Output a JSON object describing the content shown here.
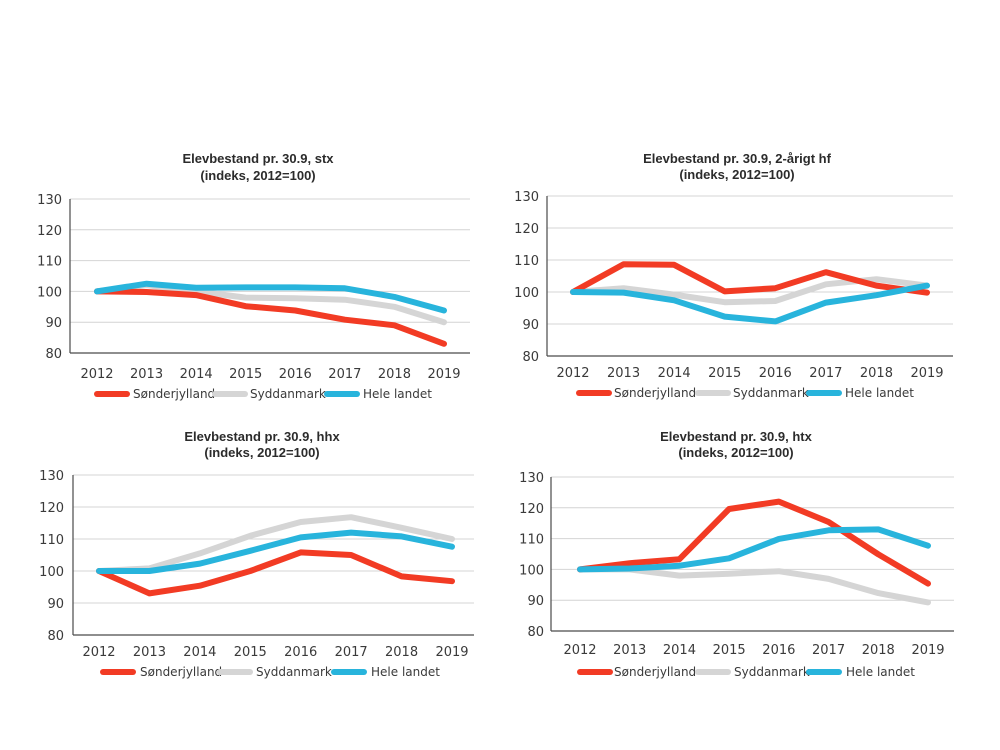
{
  "colors": {
    "Sønderjylland": "#f23b24",
    "Syddanmark": "#d5d5d5",
    "Hele landet": "#28b4dc"
  },
  "chart_data": [
    {
      "type": "line",
      "title": "Elevbestand pr. 30.9, stx",
      "subtitle": "(indeks, 2012=100)",
      "categories": [
        "2012",
        "2013",
        "2014",
        "2015",
        "2016",
        "2017",
        "2018",
        "2019"
      ],
      "ylim": [
        80,
        130
      ],
      "yticks": [
        "130",
        "120",
        "110",
        "100",
        "90",
        "80"
      ],
      "grid": true,
      "legend": "bottom",
      "series": [
        {
          "name": "Syddanmark",
          "values": [
            100,
            102,
            100,
            98,
            97.8,
            97.3,
            95,
            90
          ]
        },
        {
          "name": "Sønderjylland",
          "values": [
            100,
            99.8,
            98.8,
            95.2,
            93.8,
            90.8,
            89,
            83
          ]
        },
        {
          "name": "Hele landet",
          "values": [
            100,
            102.5,
            101.2,
            101.3,
            101.3,
            101,
            98.2,
            93.8
          ]
        }
      ]
    },
    {
      "type": "line",
      "title": "Elevbestand pr. 30.9, 2-årigt hf",
      "subtitle": "(indeks, 2012=100)",
      "categories": [
        "2012",
        "2013",
        "2014",
        "2015",
        "2016",
        "2017",
        "2018",
        "2019"
      ],
      "ylim": [
        80,
        130
      ],
      "yticks": [
        "130",
        "120",
        "110",
        "100",
        "90",
        "80"
      ],
      "grid": true,
      "legend": "bottom",
      "series": [
        {
          "name": "Syddanmark",
          "values": [
            100,
            101.2,
            99.2,
            96.8,
            97.2,
            102.4,
            104,
            102
          ]
        },
        {
          "name": "Sønderjylland",
          "values": [
            100,
            108.7,
            108.5,
            100.2,
            101.2,
            106.2,
            102,
            99.8
          ]
        },
        {
          "name": "Hele landet",
          "values": [
            100,
            99.8,
            97.4,
            92.3,
            90.8,
            96.7,
            99,
            102
          ]
        }
      ]
    },
    {
      "type": "line",
      "title": "Elevbestand pr. 30.9, hhx",
      "subtitle": "(indeks, 2012=100)",
      "categories": [
        "2012",
        "2013",
        "2014",
        "2015",
        "2016",
        "2017",
        "2018",
        "2019"
      ],
      "ylim": [
        80,
        130
      ],
      "yticks": [
        "130",
        "120",
        "110",
        "100",
        "90",
        "80"
      ],
      "grid": true,
      "legend": "bottom",
      "series": [
        {
          "name": "Syddanmark",
          "values": [
            100,
            100.8,
            105.5,
            111,
            115.3,
            116.8,
            113.5,
            110
          ]
        },
        {
          "name": "Sønderjylland",
          "values": [
            100,
            93,
            95.4,
            100,
            105.8,
            105,
            98.3,
            96.8
          ]
        },
        {
          "name": "Hele landet",
          "values": [
            100,
            100,
            102.3,
            106.3,
            110.5,
            112,
            110.8,
            107.6
          ]
        }
      ]
    },
    {
      "type": "line",
      "title": "Elevbestand pr. 30.9, htx",
      "subtitle": "(indeks, 2012=100)",
      "categories": [
        "2012",
        "2013",
        "2014",
        "2015",
        "2016",
        "2017",
        "2018",
        "2019"
      ],
      "ylim": [
        80,
        130
      ],
      "yticks": [
        "130",
        "120",
        "110",
        "100",
        "90",
        "80"
      ],
      "grid": true,
      "legend": "bottom",
      "series": [
        {
          "name": "Syddanmark",
          "values": [
            100,
            100,
            98,
            98.6,
            99.4,
            96.9,
            92.3,
            89.3
          ]
        },
        {
          "name": "Sønderjylland",
          "values": [
            100,
            102,
            103.3,
            119.6,
            122,
            115.4,
            104.9,
            95.4
          ]
        },
        {
          "name": "Hele landet",
          "values": [
            100,
            100.3,
            101.2,
            103.6,
            109.9,
            112.7,
            113,
            107.7
          ]
        }
      ]
    }
  ],
  "legend_labels": [
    "Sønderjylland",
    "Syddanmark",
    "Hele landet"
  ]
}
